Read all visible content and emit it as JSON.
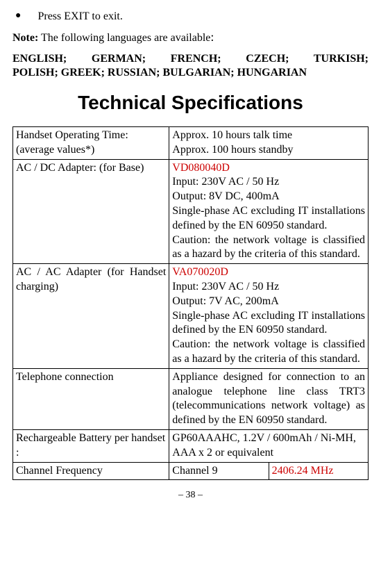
{
  "bullet": {
    "text": "Press EXIT to exit."
  },
  "note": {
    "label": "Note:",
    "text": "The following languages are available",
    "colon": ":"
  },
  "languages_line1": "ENGLISH; GERMAN; FRENCH; CZECH; TURKISH;",
  "languages_line2": "POLISH; GREEK; RUSSIAN; BULGARIAN; HUNGARIAN",
  "heading": "Technical Specifications",
  "table": {
    "rows": [
      {
        "left": "Handset Operating Time: (average values*)",
        "right_plain": "Approx. 10 hours talk time\nApprox. 100 hours standby"
      },
      {
        "left": "AC / DC Adapter: (for Base)",
        "right_red": "VD080040D",
        "right_lines": [
          "Input: 230V AC / 50 Hz",
          "Output: 8V DC, 400mA",
          "Single-phase AC excluding IT installations defined by the EN 60950 standard.",
          "Caution: the network voltage is classified as a hazard by the criteria of this standard."
        ]
      },
      {
        "left": "AC / AC Adapter (for Handset charging)",
        "right_red": "VA070020D",
        "right_lines": [
          "Input: 230V AC / 50 Hz",
          "Output: 7V AC, 200mA",
          "Single-phase AC excluding IT installations defined by the EN 60950 standard.",
          "Caution: the network voltage is classified as a hazard by the criteria of this standard."
        ]
      },
      {
        "left": "Telephone connection",
        "right_justify": "Appliance designed for connection to an analogue telephone line class TRT3 (telecommunications network voltage) as defined by the EN 60950 standard."
      },
      {
        "left": "Rechargeable Battery per handset :",
        "right_plain": "GP60AAAHC, 1.2V / 600mAh / Ni-MH, AAA x 2 or equivalent"
      },
      {
        "left": "Channel Frequency",
        "right_split_left": "Channel 9",
        "right_split_right": "2406.24 MHz"
      }
    ]
  },
  "page_number": "– 38 –"
}
